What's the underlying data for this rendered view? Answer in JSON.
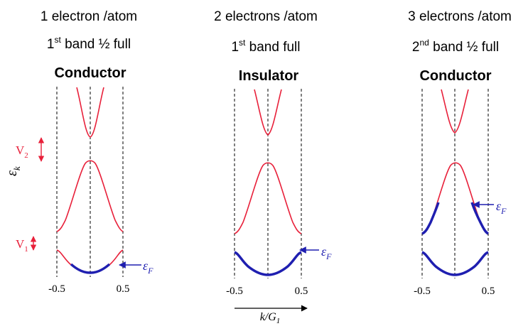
{
  "colors": {
    "band": "#e8203a",
    "filled": "#1f1fb0",
    "guide": "#000000"
  },
  "y_axis_label": {
    "main": "ε",
    "sub": "k"
  },
  "x_axis_label": {
    "main": "k/G",
    "sub": "1"
  },
  "gap_labels": {
    "v2": {
      "main": "V",
      "sub": "2"
    },
    "v1": {
      "main": "V",
      "sub": "1"
    }
  },
  "panels": [
    {
      "electrons": "1 electron /atom",
      "band_pre": "1",
      "band_sup": "st",
      "band_post": " band ½ full",
      "state": "Conductor",
      "tick_left": "-0.5",
      "tick_right": "0.5",
      "fermi": {
        "main": "ε",
        "sub": "F"
      }
    },
    {
      "electrons": "2 electrons /atom",
      "band_pre": "1",
      "band_sup": "st",
      "band_post": " band full",
      "state": "Insulator",
      "tick_left": "-0.5",
      "tick_right": "0.5",
      "fermi": {
        "main": "ε",
        "sub": "F"
      }
    },
    {
      "electrons": "3 electrons /atom",
      "band_pre": "2",
      "band_sup": "nd",
      "band_post": " band ½ full",
      "state": "Conductor",
      "tick_left": "-0.5",
      "tick_right": "0.5",
      "fermi": {
        "main": "ε",
        "sub": "F"
      }
    }
  ]
}
